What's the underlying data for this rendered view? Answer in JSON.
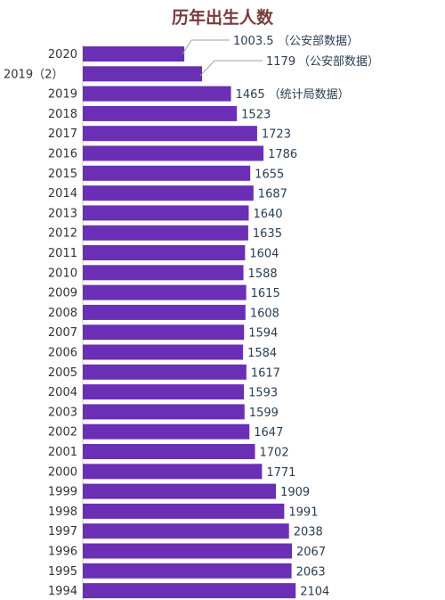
{
  "chart_data": {
    "type": "bar",
    "orientation": "horizontal",
    "title": "历年出生人数",
    "bar_color": "#6a2fb5",
    "categories": [
      "2020",
      "2019（2）",
      "2019",
      "2018",
      "2017",
      "2016",
      "2015",
      "2014",
      "2013",
      "2012",
      "2011",
      "2010",
      "2009",
      "2008",
      "2007",
      "2006",
      "2005",
      "2004",
      "2003",
      "2002",
      "2001",
      "2000",
      "1999",
      "1998",
      "1997",
      "1996",
      "1995",
      "1994"
    ],
    "values": [
      1003.5,
      1179,
      1465,
      1523,
      1723,
      1786,
      1655,
      1687,
      1640,
      1635,
      1604,
      1588,
      1615,
      1608,
      1594,
      1584,
      1617,
      1593,
      1599,
      1647,
      1702,
      1771,
      1909,
      1991,
      2038,
      2067,
      2063,
      2104
    ],
    "labels": [
      "1003.5",
      "1179",
      "1465",
      "1523",
      "1723",
      "1786",
      "1655",
      "1687",
      "1640",
      "1635",
      "1604",
      "1588",
      "1615",
      "1608",
      "1594",
      "1584",
      "1617",
      "1593",
      "1599",
      "1647",
      "1702",
      "1771",
      "1909",
      "1991",
      "2038",
      "2067",
      "2063",
      "2104"
    ],
    "annotations": [
      "（公安部数据）",
      "（公安部数据）",
      "（统计局数据）",
      "",
      "",
      "",
      "",
      "",
      "",
      "",
      "",
      "",
      "",
      "",
      "",
      "",
      "",
      "",
      "",
      "",
      "",
      "",
      "",
      "",
      "",
      "",
      "",
      ""
    ]
  }
}
